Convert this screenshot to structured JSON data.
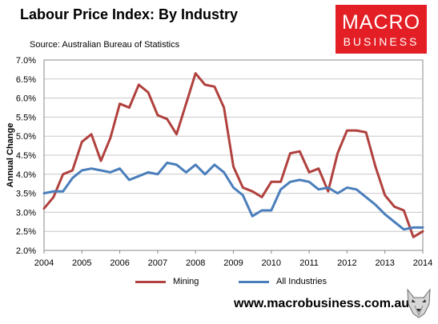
{
  "title": "Labour Price Index: By Industry",
  "source": "Source: Australian Bureau of Statistics",
  "logo": {
    "line1": "MACRO",
    "line2": "BUSINESS"
  },
  "website": "www.macrobusiness.com.au",
  "colors": {
    "mining": "#b0413e",
    "all_industries": "#4a7ebb",
    "logo_red": "#e31e24"
  },
  "chart_data": {
    "type": "line",
    "ylabel": "Annual Change",
    "ylim": [
      2.0,
      7.0
    ],
    "yticks": [
      "2.0%",
      "2.5%",
      "3.0%",
      "3.5%",
      "4.0%",
      "4.5%",
      "5.0%",
      "5.5%",
      "6.0%",
      "6.5%",
      "7.0%"
    ],
    "xlim": [
      2004,
      2014
    ],
    "xticks": [
      "2004",
      "2005",
      "2006",
      "2007",
      "2008",
      "2009",
      "2010",
      "2011",
      "2012",
      "2013",
      "2014"
    ],
    "grid": true,
    "legend_position": "bottom",
    "x": [
      2004.0,
      2004.25,
      2004.5,
      2004.75,
      2005.0,
      2005.25,
      2005.5,
      2005.75,
      2006.0,
      2006.25,
      2006.5,
      2006.75,
      2007.0,
      2007.25,
      2007.5,
      2007.75,
      2008.0,
      2008.25,
      2008.5,
      2008.75,
      2009.0,
      2009.25,
      2009.5,
      2009.75,
      2010.0,
      2010.25,
      2010.5,
      2010.75,
      2011.0,
      2011.25,
      2011.5,
      2011.75,
      2012.0,
      2012.25,
      2012.5,
      2012.75,
      2013.0,
      2013.25,
      2013.5,
      2013.75,
      2014.0
    ],
    "series": [
      {
        "name": "Mining",
        "values": [
          3.1,
          3.4,
          4.0,
          4.1,
          4.85,
          5.05,
          4.35,
          4.95,
          5.85,
          5.75,
          6.35,
          6.15,
          5.55,
          5.45,
          5.05,
          5.85,
          6.65,
          6.35,
          6.3,
          5.75,
          4.2,
          3.65,
          3.55,
          3.4,
          3.8,
          3.8,
          4.55,
          4.6,
          4.05,
          4.15,
          3.55,
          4.55,
          5.15,
          5.15,
          5.1,
          4.2,
          3.45,
          3.15,
          3.05,
          2.35,
          2.5
        ]
      },
      {
        "name": "All Industries",
        "values": [
          3.5,
          3.55,
          3.55,
          3.9,
          4.1,
          4.15,
          4.1,
          4.05,
          4.15,
          3.85,
          3.95,
          4.05,
          4.0,
          4.3,
          4.25,
          4.05,
          4.25,
          4.0,
          4.25,
          4.05,
          3.65,
          3.45,
          2.9,
          3.05,
          3.05,
          3.6,
          3.8,
          3.85,
          3.8,
          3.6,
          3.65,
          3.5,
          3.65,
          3.6,
          3.4,
          3.2,
          2.95,
          2.75,
          2.55,
          2.6,
          2.6
        ]
      }
    ]
  }
}
